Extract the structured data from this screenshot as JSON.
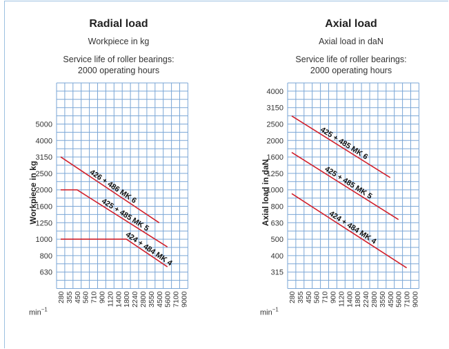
{
  "chart_data": [
    {
      "type": "line",
      "title": "Radial load",
      "subtitle": "Workpiece in kg",
      "note_line1": "Service life of roller bearings:",
      "note_line2": "2000 operating hours",
      "ylabel": "Workpiece in kg",
      "xunit": "min",
      "xunit_exp": "−1",
      "x_ticks": [
        "280",
        "355",
        "450",
        "560",
        "710",
        "900",
        "1120",
        "1400",
        "1800",
        "2240",
        "2800",
        "3550",
        "4500",
        "5600",
        "7100",
        "9000"
      ],
      "y_ticks": [
        "630",
        "800",
        "1000",
        "1250",
        "1600",
        "2000",
        "2500",
        "3150",
        "4000",
        "5000"
      ],
      "y_scale": "log",
      "grid": true,
      "line_color": "#d2202b",
      "series": [
        {
          "name": "426 + 486 MK 6",
          "points": [
            [
              280,
              3150
            ],
            [
              4500,
              1250
            ]
          ]
        },
        {
          "name": "425 + 485 MK 5",
          "points": [
            [
              280,
              2000
            ],
            [
              450,
              2000
            ],
            [
              5600,
              900
            ]
          ]
        },
        {
          "name": "424 + 484 MK 4",
          "points": [
            [
              280,
              1000
            ],
            [
              1800,
              1000
            ],
            [
              5600,
              680
            ]
          ]
        }
      ]
    },
    {
      "type": "line",
      "title": "Axial load",
      "subtitle": "Axial load in daN",
      "note_line1": "Service life of roller bearings:",
      "note_line2": "2000 operating hours",
      "ylabel": "Axial load in daN",
      "xunit": "min",
      "xunit_exp": "−1",
      "x_ticks": [
        "280",
        "355",
        "450",
        "560",
        "710",
        "900",
        "1120",
        "1400",
        "1800",
        "2240",
        "2800",
        "3550",
        "4500",
        "5600",
        "7100",
        "9000"
      ],
      "y_ticks": [
        "315",
        "400",
        "500",
        "630",
        "800",
        "1000",
        "1250",
        "1600",
        "2000",
        "2500",
        "3150",
        "4000"
      ],
      "y_scale": "log",
      "grid": true,
      "line_color": "#d2202b",
      "series": [
        {
          "name": "425 + 485 MK 6",
          "points": [
            [
              280,
              2800
            ],
            [
              4500,
              1180
            ]
          ]
        },
        {
          "name": "425 + 485 MK 5",
          "points": [
            [
              280,
              1700
            ],
            [
              5600,
              660
            ]
          ]
        },
        {
          "name": "424 + 484 MK 4",
          "points": [
            [
              280,
              950
            ],
            [
              7100,
              335
            ]
          ]
        }
      ]
    }
  ]
}
